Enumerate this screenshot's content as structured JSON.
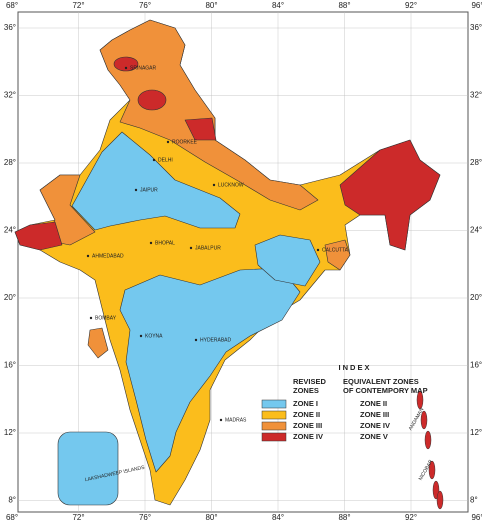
{
  "map": {
    "lon_labels": [
      "68°",
      "72°",
      "76°",
      "80°",
      "84°",
      "88°",
      "92°",
      "96°"
    ],
    "lat_labels": [
      "36°",
      "32°",
      "28°",
      "24°",
      "20°",
      "16°",
      "12°",
      "8°"
    ],
    "cities": [
      "SRINAGAR",
      "ROORKEE",
      "DELHI",
      "JAIPUR",
      "LUCKNOW",
      "BHOPAL",
      "JABALPUR",
      "CALCUTTA",
      "AHMEDABAD",
      "BOMBAY",
      "KOYNA",
      "HYDERABAD",
      "MADRAS",
      "LAKSHADWEEP ISLANDS",
      "ANDAMAN",
      "NICOBAR"
    ],
    "index": {
      "title": "INDEX",
      "col1": [
        "REVISED",
        "ZONES"
      ],
      "col2": [
        "EQUIVALENT ZONES",
        "OF CONTEMPORY MAP"
      ],
      "rows": [
        {
          "revised": "ZONE I",
          "equivalent": "ZONE II",
          "color": "#74c8ee"
        },
        {
          "revised": "ZONE II",
          "equivalent": "ZONE III",
          "color": "#fbbd1c"
        },
        {
          "revised": "ZONE III",
          "equivalent": "ZONE IV",
          "color": "#f0913a"
        },
        {
          "revised": "ZONE IV",
          "equivalent": "ZONE V",
          "color": "#cc2a2a"
        }
      ]
    }
  }
}
